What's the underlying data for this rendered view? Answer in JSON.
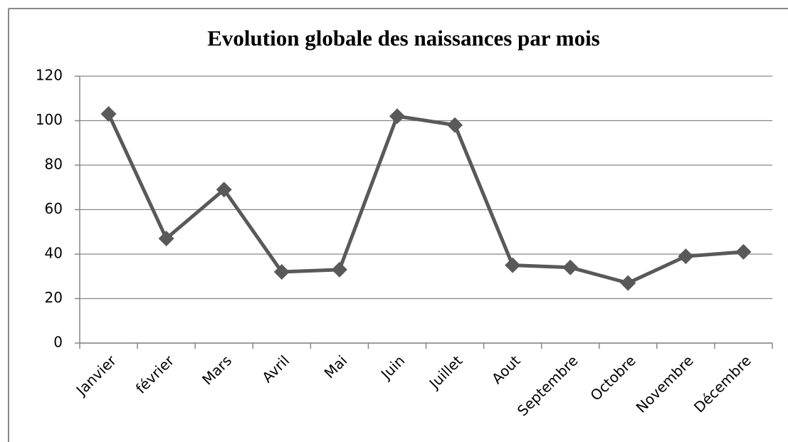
{
  "chart_data": {
    "type": "line",
    "title": "Evolution globale des naissances par mois",
    "categories": [
      "Janvier",
      "février",
      "Mars",
      "Avril",
      "Mai",
      "Juin",
      "Juillet",
      "Aout",
      "Septembre",
      "Octobre",
      "Novembre",
      "Décembre"
    ],
    "values": [
      103,
      47,
      69,
      32,
      33,
      102,
      98,
      35,
      34,
      27,
      39,
      41
    ],
    "color": "#595959",
    "ylim": [
      0,
      120
    ],
    "yticks": [
      0,
      20,
      40,
      60,
      80,
      100,
      120
    ],
    "grid": true
  }
}
